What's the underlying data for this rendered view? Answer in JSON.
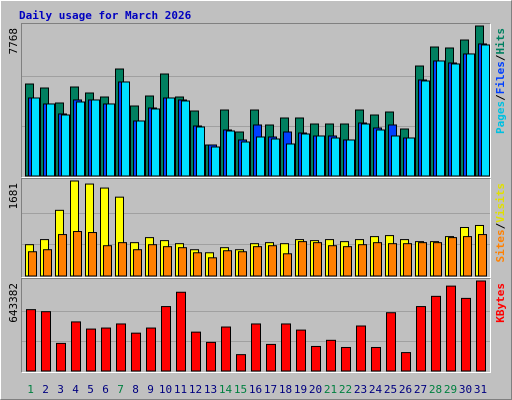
{
  "title": "Daily usage for March 2026",
  "legend_separator": "/",
  "chart_data": [
    {
      "type": "bar",
      "ylim": [
        0,
        7768
      ],
      "yticks": [
        7768
      ],
      "series": [
        {
          "name": "Hits",
          "color": "#008060",
          "label_color": "#008060",
          "values": [
            4764,
            4557,
            3781,
            4609,
            4298,
            4091,
            5541,
            3625,
            4143,
            5282,
            4091,
            3366,
            1605,
            3418,
            2279,
            3418,
            2641,
            3004,
            3004,
            2693,
            2693,
            2693,
            3418,
            3159,
            3314,
            2434,
            5696,
            6680,
            6629,
            7043,
            7768
          ]
        },
        {
          "name": "Files",
          "color": "#0040ff",
          "label_color": "#0040ff",
          "values": [
            4040,
            3730,
            3212,
            3937,
            3937,
            3730,
            4869,
            2849,
            3522,
            4040,
            3937,
            2590,
            1606,
            2383,
            1865,
            2642,
            2020,
            2279,
            2227,
            2072,
            2072,
            1865,
            2745,
            2486,
            2642,
            1968,
            4973,
            5957,
            5853,
            6320,
            6838
          ]
        },
        {
          "name": "Pages",
          "color": "#00e0ff",
          "label_color": "#00c0e0",
          "values": [
            4040,
            3730,
            3160,
            3833,
            3937,
            3730,
            4869,
            2849,
            3471,
            4040,
            3885,
            2538,
            1502,
            2331,
            1761,
            2020,
            1917,
            1658,
            2176,
            2072,
            1968,
            1865,
            2694,
            2383,
            2072,
            1968,
            4921,
            5957,
            5802,
            6320,
            6786
          ]
        }
      ]
    },
    {
      "type": "bar",
      "ylim": [
        0,
        1681
      ],
      "yticks": [
        1681
      ],
      "series": [
        {
          "name": "Visits",
          "color": "#ffff00",
          "label_color": "#e0e000",
          "values": [
            554,
            644,
            1162,
            1681,
            1627,
            1556,
            1395,
            590,
            679,
            626,
            572,
            465,
            411,
            501,
            465,
            572,
            590,
            572,
            644,
            626,
            644,
            608,
            644,
            697,
            715,
            644,
            608,
            608,
            697,
            858,
            894
          ]
        },
        {
          "name": "Sites",
          "color": "#ff8000",
          "label_color": "#ff8000",
          "values": [
            429,
            465,
            733,
            787,
            769,
            536,
            590,
            465,
            554,
            519,
            501,
            411,
            322,
            447,
            429,
            519,
            536,
            393,
            608,
            590,
            536,
            519,
            554,
            590,
            572,
            572,
            590,
            590,
            679,
            697,
            733
          ]
        }
      ]
    },
    {
      "type": "bar",
      "ylim": [
        0,
        643382
      ],
      "yticks": [
        643382
      ],
      "categories": [
        "1",
        "2",
        "3",
        "4",
        "5",
        "6",
        "7",
        "8",
        "9",
        "10",
        "11",
        "12",
        "13",
        "14",
        "15",
        "16",
        "17",
        "18",
        "19",
        "20",
        "21",
        "22",
        "23",
        "24",
        "25",
        "26",
        "27",
        "28",
        "29",
        "30",
        "31"
      ],
      "category_colors": [
        "#008040",
        "#000080",
        "#000080",
        "#000080",
        "#000080",
        "#000080",
        "#008040",
        "#000080",
        "#000080",
        "#000080",
        "#000080",
        "#000080",
        "#000080",
        "#008040",
        "#008040",
        "#000080",
        "#000080",
        "#000080",
        "#000080",
        "#000080",
        "#008040",
        "#008040",
        "#000080",
        "#000080",
        "#000080",
        "#000080",
        "#000080",
        "#008040",
        "#008040",
        "#000080",
        "#000080"
      ],
      "series": [
        {
          "name": "KBytes",
          "color": "#ff0000",
          "label_color": "#ff0000",
          "values": [
            438660,
            424038,
            197397,
            350928,
            299751,
            307062,
            336306,
            270507,
            307062,
            460593,
            562947,
            277818,
            204708,
            314373,
            116976,
            336306,
            190086,
            336306,
            292440,
            175464,
            219330,
            168153,
            321684,
            168153,
            416727,
            131598,
            460593,
            533703,
            606813,
            519081,
            643382
          ]
        }
      ]
    }
  ]
}
